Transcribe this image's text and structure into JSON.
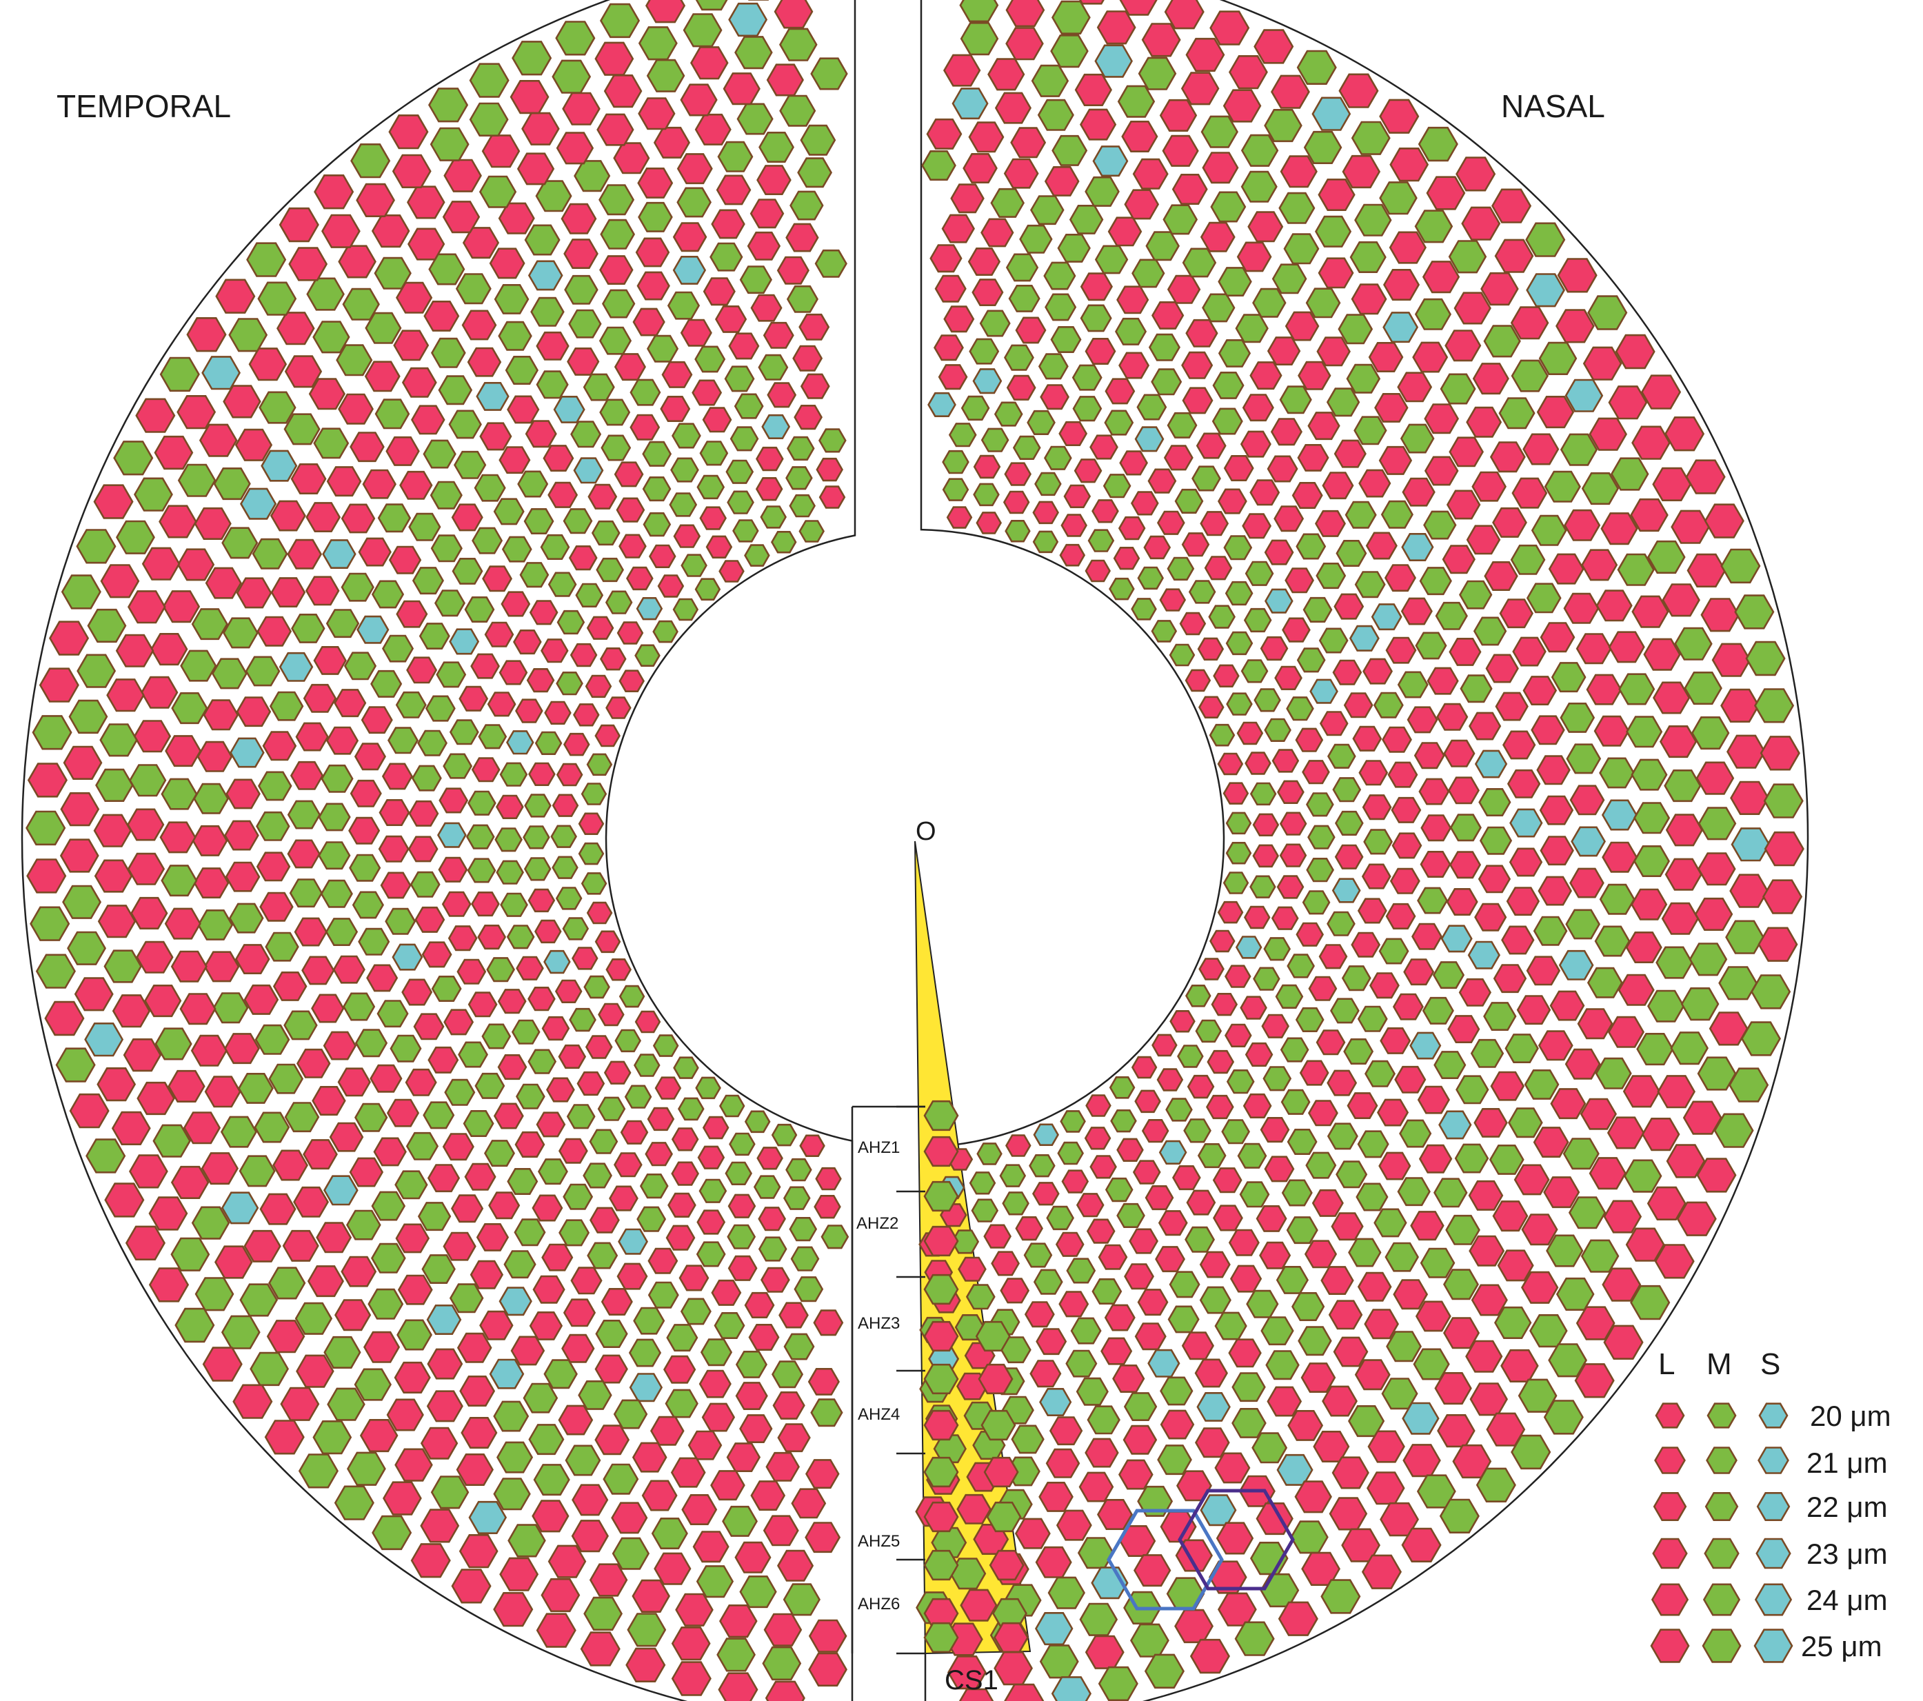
{
  "labels": {
    "temporal": "TEMPORAL",
    "nasal": "NASAL",
    "origin": "O",
    "section": "CS1"
  },
  "zones": [
    "AHZ1",
    "AHZ2",
    "AHZ3",
    "AHZ4",
    "AHZ5",
    "AHZ6"
  ],
  "legend": {
    "headers": [
      "L",
      "M",
      "S"
    ],
    "sizes": [
      "20 μm",
      "21 μm",
      "22 μm",
      "23 μm",
      "24 μm",
      "25 μm"
    ]
  },
  "cone_types": [
    {
      "type": "L",
      "fill": "#ef3b67"
    },
    {
      "type": "M",
      "fill": "#7dbb42"
    },
    {
      "type": "S",
      "fill": "#77c8cf"
    }
  ],
  "colors": {
    "outline": "#7a4a25",
    "sector": "#ffe634",
    "hex_blue": "#4a76c4",
    "hex_purple": "#4a2e8c"
  }
}
